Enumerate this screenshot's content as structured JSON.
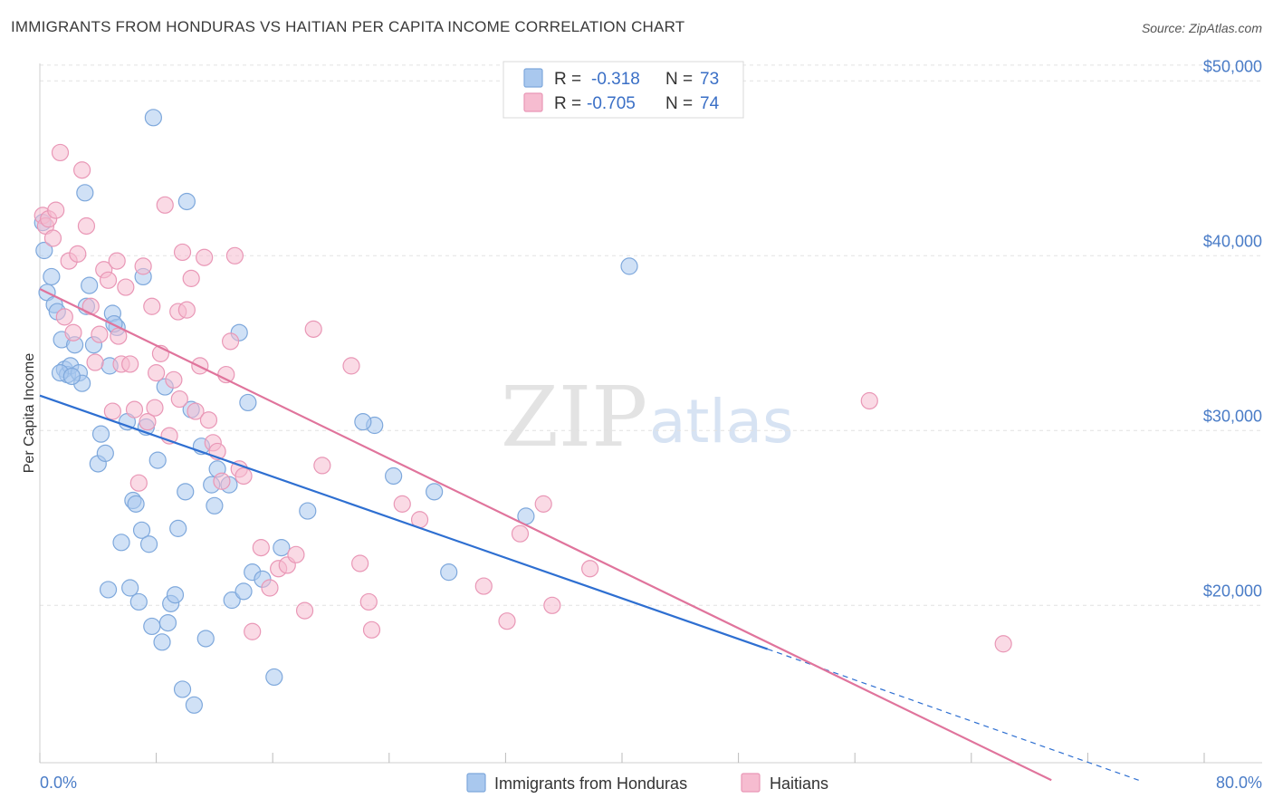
{
  "title": "IMMIGRANTS FROM HONDURAS VS HAITIAN PER CAPITA INCOME CORRELATION CHART",
  "source": "Source: ZipAtlas.com",
  "watermark": {
    "zip": "ZIP",
    "atlas": "atlas"
  },
  "colors": {
    "honduras_fill": "#a9c8ee",
    "honduras_stroke": "#7ea8dc",
    "honduras_line": "#2e6fd1",
    "haitians_fill": "#f6bcd0",
    "haitians_stroke": "#e997b6",
    "haitians_line": "#e0749c",
    "tick_text": "#4a7cc7"
  },
  "legend": {
    "rows": [
      {
        "r_label": "R =",
        "r_value": "-0.318",
        "n_label": "N =",
        "n_value": "73"
      },
      {
        "r_label": "R =",
        "r_value": "-0.705",
        "n_label": "N =",
        "n_value": "74"
      }
    ]
  },
  "chart_data": {
    "type": "scatter",
    "title": "IMMIGRANTS FROM HONDURAS VS HAITIAN PER CAPITA INCOME CORRELATION CHART",
    "xlabel": "",
    "ylabel": "Per Capita Income",
    "xlim": [
      0,
      80
    ],
    "ylim": [
      11000,
      51000
    ],
    "x_tick_labels": [
      "0.0%",
      "80.0%"
    ],
    "y_ticks": [
      20000,
      30000,
      40000,
      50000
    ],
    "y_tick_labels": [
      "$20,000",
      "$30,000",
      "$40,000",
      "$50,000"
    ],
    "grid": true,
    "legend_position": "top-center",
    "series": [
      {
        "name": "Immigrants from Honduras",
        "R": -0.318,
        "N": 73,
        "trend": {
          "x_start": 0,
          "y_start": 32000,
          "x_solid_end": 50,
          "y_solid_end": 17500,
          "x_dashed_end": 75.5,
          "y_dashed_end": 10000
        },
        "points": [
          [
            0.2,
            41900
          ],
          [
            0.3,
            40300
          ],
          [
            0.5,
            37900
          ],
          [
            0.8,
            38800
          ],
          [
            1.0,
            37200
          ],
          [
            1.2,
            36800
          ],
          [
            1.5,
            35200
          ],
          [
            1.7,
            33500
          ],
          [
            1.9,
            33200
          ],
          [
            2.1,
            33700
          ],
          [
            2.4,
            34900
          ],
          [
            2.7,
            33300
          ],
          [
            2.9,
            32700
          ],
          [
            3.2,
            37100
          ],
          [
            3.4,
            38300
          ],
          [
            3.7,
            34900
          ],
          [
            4.0,
            28100
          ],
          [
            4.2,
            29800
          ],
          [
            4.5,
            28700
          ],
          [
            4.8,
            33700
          ],
          [
            5.0,
            36700
          ],
          [
            5.3,
            35900
          ],
          [
            5.6,
            23600
          ],
          [
            6.0,
            30500
          ],
          [
            6.2,
            21000
          ],
          [
            6.4,
            26000
          ],
          [
            6.6,
            25800
          ],
          [
            6.8,
            20200
          ],
          [
            7.0,
            24300
          ],
          [
            7.3,
            30200
          ],
          [
            7.5,
            23500
          ],
          [
            7.7,
            18800
          ],
          [
            7.8,
            47900
          ],
          [
            8.1,
            28300
          ],
          [
            8.4,
            17900
          ],
          [
            8.6,
            32500
          ],
          [
            8.8,
            19000
          ],
          [
            9.0,
            20100
          ],
          [
            9.3,
            20600
          ],
          [
            9.5,
            24400
          ],
          [
            9.8,
            15200
          ],
          [
            10.0,
            26500
          ],
          [
            10.1,
            43100
          ],
          [
            10.4,
            31200
          ],
          [
            10.6,
            14300
          ],
          [
            11.1,
            29100
          ],
          [
            11.4,
            18100
          ],
          [
            11.8,
            26900
          ],
          [
            12.0,
            25700
          ],
          [
            12.2,
            27800
          ],
          [
            13.0,
            26900
          ],
          [
            13.2,
            20300
          ],
          [
            13.7,
            35600
          ],
          [
            14.3,
            31600
          ],
          [
            14.6,
            21900
          ],
          [
            15.3,
            21500
          ],
          [
            16.1,
            15900
          ],
          [
            16.6,
            23300
          ],
          [
            18.4,
            25400
          ],
          [
            23.0,
            30300
          ],
          [
            24.3,
            27400
          ],
          [
            27.1,
            26500
          ],
          [
            28.1,
            21900
          ],
          [
            33.4,
            25100
          ],
          [
            4.7,
            20900
          ],
          [
            5.1,
            36100
          ],
          [
            22.2,
            30500
          ],
          [
            14.0,
            20800
          ],
          [
            40.5,
            39400
          ],
          [
            3.1,
            43600
          ],
          [
            1.4,
            33300
          ],
          [
            2.2,
            33100
          ],
          [
            7.1,
            38800
          ]
        ]
      },
      {
        "name": "Haitians",
        "R": -0.705,
        "N": 74,
        "trend": {
          "x_start": 0,
          "y_start": 38100,
          "x_end": 69.5,
          "y_end": 10000
        },
        "points": [
          [
            0.2,
            42300
          ],
          [
            0.4,
            41700
          ],
          [
            0.6,
            42100
          ],
          [
            0.9,
            41000
          ],
          [
            1.1,
            42600
          ],
          [
            1.4,
            45900
          ],
          [
            1.7,
            36500
          ],
          [
            2.0,
            39700
          ],
          [
            2.3,
            35600
          ],
          [
            2.6,
            40100
          ],
          [
            2.9,
            44900
          ],
          [
            3.2,
            41700
          ],
          [
            3.5,
            37100
          ],
          [
            3.8,
            33900
          ],
          [
            4.1,
            35500
          ],
          [
            4.4,
            39200
          ],
          [
            4.7,
            38600
          ],
          [
            5.0,
            31100
          ],
          [
            5.3,
            39700
          ],
          [
            5.6,
            33800
          ],
          [
            5.9,
            38200
          ],
          [
            6.2,
            33800
          ],
          [
            6.5,
            31200
          ],
          [
            6.8,
            27000
          ],
          [
            7.1,
            39400
          ],
          [
            7.4,
            30500
          ],
          [
            7.7,
            37100
          ],
          [
            8.0,
            33300
          ],
          [
            8.3,
            34400
          ],
          [
            8.6,
            42900
          ],
          [
            8.9,
            29700
          ],
          [
            9.2,
            32900
          ],
          [
            9.5,
            36800
          ],
          [
            9.8,
            40200
          ],
          [
            10.1,
            36900
          ],
          [
            10.4,
            38700
          ],
          [
            10.7,
            31100
          ],
          [
            11.0,
            33700
          ],
          [
            11.3,
            39900
          ],
          [
            11.6,
            30600
          ],
          [
            11.9,
            29300
          ],
          [
            12.2,
            28800
          ],
          [
            12.5,
            27100
          ],
          [
            12.8,
            33200
          ],
          [
            13.1,
            35100
          ],
          [
            13.4,
            40000
          ],
          [
            13.7,
            27800
          ],
          [
            14.0,
            27400
          ],
          [
            14.6,
            18500
          ],
          [
            15.2,
            23300
          ],
          [
            15.8,
            21000
          ],
          [
            16.4,
            22100
          ],
          [
            17.0,
            22300
          ],
          [
            17.6,
            22900
          ],
          [
            18.2,
            19700
          ],
          [
            18.8,
            35800
          ],
          [
            19.4,
            28000
          ],
          [
            21.4,
            33700
          ],
          [
            22.0,
            22400
          ],
          [
            22.6,
            20200
          ],
          [
            22.8,
            18600
          ],
          [
            24.9,
            25800
          ],
          [
            26.1,
            24900
          ],
          [
            30.5,
            21100
          ],
          [
            32.1,
            19100
          ],
          [
            33.0,
            24100
          ],
          [
            34.6,
            25800
          ],
          [
            35.2,
            20000
          ],
          [
            37.8,
            22100
          ],
          [
            57.0,
            31700
          ],
          [
            66.2,
            17800
          ],
          [
            5.4,
            35400
          ],
          [
            7.9,
            31300
          ],
          [
            9.6,
            31800
          ]
        ]
      }
    ]
  },
  "bottom_legend": [
    {
      "label": "Immigrants from Honduras"
    },
    {
      "label": "Haitians"
    }
  ]
}
